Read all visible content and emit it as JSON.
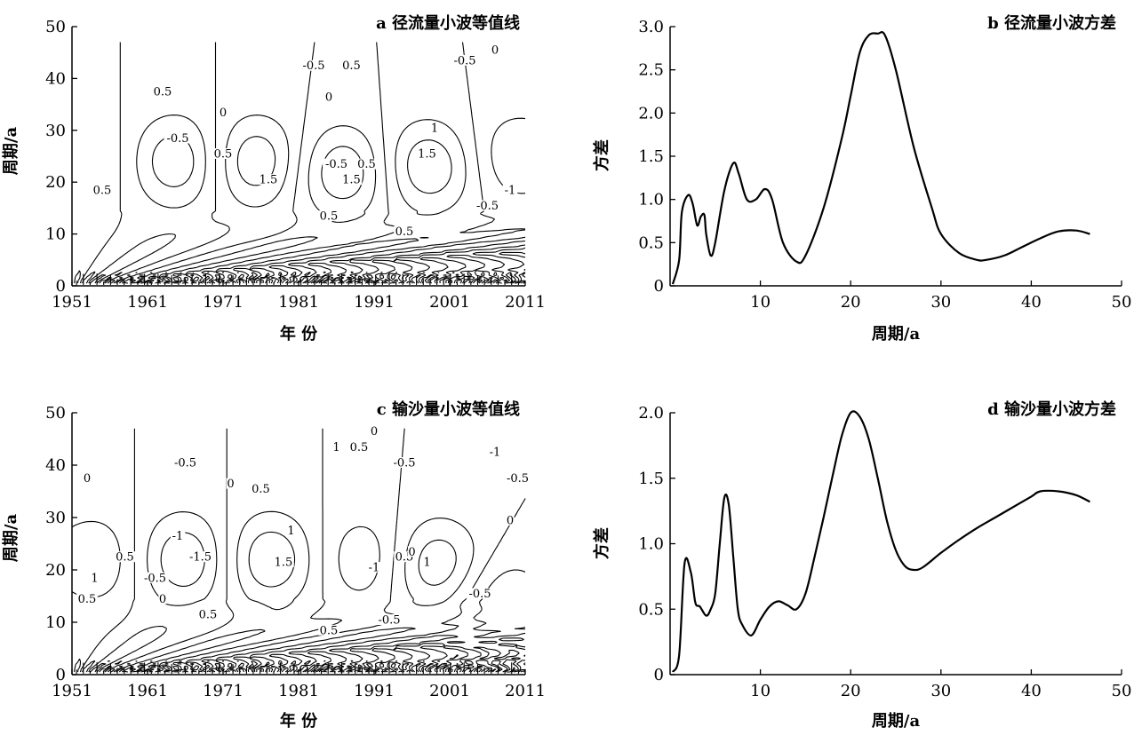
{
  "chart_data": [
    {
      "id": "a",
      "type": "heatmap",
      "title": "a 径流量小波等值线",
      "xlabel": "年 份",
      "ylabel": "周期/a",
      "xlim": [
        1951,
        2011
      ],
      "ylim": [
        0,
        50
      ],
      "xticks": [
        1951,
        1961,
        1971,
        1981,
        1991,
        2001,
        2011
      ],
      "yticks": [
        0,
        10,
        20,
        30,
        40,
        50
      ],
      "line_style": "solid = positive and zero contours, dashed = negative contours",
      "centers": [
        {
          "x": 1965,
          "y": 24,
          "value": -1.5
        },
        {
          "x": 1975,
          "y": 24,
          "value": 1.5
        },
        {
          "x": 1987,
          "y": 22,
          "value": -1.5
        },
        {
          "x": 1998,
          "y": 23,
          "value": 1.5
        },
        {
          "x": 2010,
          "y": 25,
          "value": -1
        },
        {
          "x": 1954,
          "y": 24,
          "value": 0.5
        }
      ],
      "contour_labels": [
        {
          "x": 1963,
          "y": 37,
          "text": "0.5"
        },
        {
          "x": 1983,
          "y": 42,
          "text": "-0.5"
        },
        {
          "x": 1988,
          "y": 42,
          "text": "0.5"
        },
        {
          "x": 2003,
          "y": 43,
          "text": "-0.5"
        },
        {
          "x": 2007,
          "y": 45,
          "text": "0"
        },
        {
          "x": 1971,
          "y": 33,
          "text": "0"
        },
        {
          "x": 1985,
          "y": 36,
          "text": "0"
        },
        {
          "x": 1965,
          "y": 28,
          "text": "-0.5"
        },
        {
          "x": 1971,
          "y": 25,
          "text": "0.5"
        },
        {
          "x": 1977,
          "y": 20,
          "text": "1.5"
        },
        {
          "x": 1986,
          "y": 23,
          "text": "-0.5"
        },
        {
          "x": 1988,
          "y": 20,
          "text": "1.5"
        },
        {
          "x": 1990,
          "y": 23,
          "text": "0.5"
        },
        {
          "x": 1999,
          "y": 30,
          "text": "1"
        },
        {
          "x": 1998,
          "y": 25,
          "text": "1.5"
        },
        {
          "x": 1955,
          "y": 18,
          "text": "0.5"
        },
        {
          "x": 1985,
          "y": 13,
          "text": "0.5"
        },
        {
          "x": 1995,
          "y": 10,
          "text": "0.5"
        },
        {
          "x": 2006,
          "y": 15,
          "text": "-0.5"
        },
        {
          "x": 2009,
          "y": 18,
          "text": "-1"
        }
      ]
    },
    {
      "id": "b",
      "type": "line",
      "title": "b 径流量小波方差",
      "xlabel": "周期/a",
      "ylabel": "方差",
      "xlim": [
        0,
        50
      ],
      "ylim": [
        0,
        3.0
      ],
      "xticks": [
        10,
        20,
        30,
        40,
        50
      ],
      "yticks": [
        "0",
        "0.5",
        "1.0",
        "1.5",
        "2.0",
        "2.5",
        "3.0"
      ],
      "series": [
        {
          "x": [
            0.3,
            1,
            1.3,
            2,
            2.5,
            3,
            3.4,
            3.8,
            4,
            4.5,
            5,
            6,
            7,
            7.6,
            8.5,
            9.5,
            10.5,
            11.3,
            12.5,
            14,
            15,
            17,
            19,
            20,
            21,
            22,
            23,
            23.8,
            25,
            27,
            29,
            30,
            32,
            34,
            35,
            37,
            39,
            41,
            43,
            45,
            46.5
          ],
          "y": [
            0.02,
            0.3,
            0.85,
            1.05,
            0.95,
            0.7,
            0.8,
            0.82,
            0.6,
            0.35,
            0.5,
            1.1,
            1.42,
            1.3,
            1.0,
            1.0,
            1.12,
            1.0,
            0.5,
            0.28,
            0.35,
            0.9,
            1.7,
            2.2,
            2.7,
            2.9,
            2.92,
            2.9,
            2.5,
            1.6,
            0.9,
            0.6,
            0.38,
            0.3,
            0.3,
            0.35,
            0.45,
            0.55,
            0.63,
            0.64,
            0.6
          ]
        }
      ]
    },
    {
      "id": "c",
      "type": "heatmap",
      "title": "c 输沙量小波等值线",
      "xlabel": "年 份",
      "ylabel": "周期/a",
      "xlim": [
        1951,
        2011
      ],
      "ylim": [
        0,
        50
      ],
      "xticks": [
        1951,
        1961,
        1971,
        1981,
        1991,
        2001,
        2011
      ],
      "yticks": [
        0,
        10,
        20,
        30,
        40,
        50
      ],
      "line_style": "solid = positive and zero contours, dashed = negative contours",
      "centers": [
        {
          "x": 1954,
          "y": 22,
          "value": 1
        },
        {
          "x": 1966,
          "y": 22,
          "value": -1.5
        },
        {
          "x": 1977,
          "y": 22,
          "value": 1.5
        },
        {
          "x": 1990,
          "y": 22,
          "value": -1
        },
        {
          "x": 1999,
          "y": 21,
          "value": 1.5
        },
        {
          "x": 2008,
          "y": 14,
          "value": -1
        }
      ],
      "contour_labels": [
        {
          "x": 1953,
          "y": 37,
          "text": "0"
        },
        {
          "x": 1966,
          "y": 40,
          "text": "-0.5"
        },
        {
          "x": 1972,
          "y": 36,
          "text": "0"
        },
        {
          "x": 1976,
          "y": 35,
          "text": "0.5"
        },
        {
          "x": 1980,
          "y": 27,
          "text": "1"
        },
        {
          "x": 1986,
          "y": 43,
          "text": "1"
        },
        {
          "x": 1989,
          "y": 43,
          "text": "0.5"
        },
        {
          "x": 1991,
          "y": 46,
          "text": "0"
        },
        {
          "x": 1995,
          "y": 40,
          "text": "-0.5"
        },
        {
          "x": 2007,
          "y": 42,
          "text": "-1"
        },
        {
          "x": 2010,
          "y": 37,
          "text": "-0.5"
        },
        {
          "x": 2009,
          "y": 29,
          "text": "0"
        },
        {
          "x": 1958,
          "y": 22,
          "text": "0.5"
        },
        {
          "x": 1962,
          "y": 18,
          "text": "-0.5"
        },
        {
          "x": 1965,
          "y": 26,
          "text": "-1"
        },
        {
          "x": 1968,
          "y": 22,
          "text": "-1.5"
        },
        {
          "x": 1979,
          "y": 21,
          "text": "1.5"
        },
        {
          "x": 1953,
          "y": 14,
          "text": "0.5"
        },
        {
          "x": 1954,
          "y": 18,
          "text": "1"
        },
        {
          "x": 1963,
          "y": 14,
          "text": "0"
        },
        {
          "x": 1969,
          "y": 11,
          "text": "0.5"
        },
        {
          "x": 1985,
          "y": 8,
          "text": "0.5"
        },
        {
          "x": 1991,
          "y": 20,
          "text": "-1"
        },
        {
          "x": 1993,
          "y": 10,
          "text": "-0.5"
        },
        {
          "x": 1995,
          "y": 22,
          "text": "0.5"
        },
        {
          "x": 1996,
          "y": 23,
          "text": "0"
        },
        {
          "x": 1998,
          "y": 21,
          "text": "1"
        },
        {
          "x": 2005,
          "y": 15,
          "text": "-0.5"
        }
      ]
    },
    {
      "id": "d",
      "type": "line",
      "title": "d 输沙量小波方差",
      "xlabel": "周期/a",
      "ylabel": "方差",
      "xlim": [
        0,
        50
      ],
      "ylim": [
        0,
        2.0
      ],
      "xticks": [
        10,
        20,
        30,
        40,
        50
      ],
      "yticks": [
        "0",
        "0.5",
        "1.0",
        "1.5",
        "2.0"
      ],
      "series": [
        {
          "x": [
            0.3,
            1,
            1.6,
            2.3,
            2.8,
            3.3,
            4,
            4.5,
            5,
            5.5,
            6,
            6.5,
            7,
            7.5,
            8,
            9,
            10,
            11,
            12,
            13,
            14,
            15,
            16,
            17,
            18,
            19,
            20,
            21,
            22,
            23,
            24,
            25,
            26,
            27,
            28,
            30,
            32,
            34,
            36,
            38,
            40,
            41,
            43,
            45,
            46.5
          ],
          "y": [
            0.02,
            0.15,
            0.85,
            0.78,
            0.55,
            0.52,
            0.45,
            0.5,
            0.62,
            1.0,
            1.35,
            1.3,
            0.9,
            0.5,
            0.38,
            0.3,
            0.42,
            0.52,
            0.56,
            0.53,
            0.5,
            0.62,
            0.9,
            1.2,
            1.52,
            1.82,
            2.0,
            1.97,
            1.8,
            1.5,
            1.18,
            0.95,
            0.83,
            0.8,
            0.82,
            0.93,
            1.03,
            1.12,
            1.2,
            1.28,
            1.36,
            1.4,
            1.4,
            1.37,
            1.32
          ]
        }
      ]
    }
  ]
}
